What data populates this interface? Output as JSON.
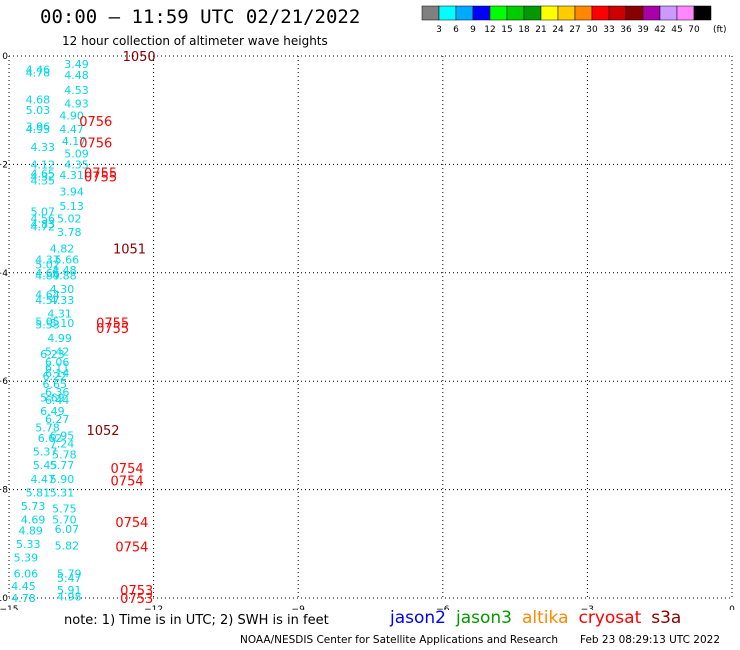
{
  "header": {
    "title": "00:00 – 11:59 UTC 02/21/2022",
    "subtitle": "12 hour collection of altimeter wave heights"
  },
  "colorbar": {
    "unit": "(ft)",
    "labels": [
      "3",
      "6",
      "9",
      "12",
      "15",
      "18",
      "21",
      "24",
      "27",
      "30",
      "33",
      "36",
      "39",
      "42",
      "45",
      "70"
    ],
    "colors": [
      "#808080",
      "#00ffff",
      "#00aaff",
      "#0000ff",
      "#00ff00",
      "#00cc00",
      "#009900",
      "#ffff00",
      "#ffcc00",
      "#ff8800",
      "#ff0000",
      "#cc0000",
      "#880000",
      "#aa00aa",
      "#cc99ff",
      "#ff88ff",
      "#000000"
    ]
  },
  "note": "note:  1) Time is in UTC;  2) SWH is in feet",
  "legend": [
    {
      "label": "jason2",
      "color": "#0000ff"
    },
    {
      "label": "jason3",
      "color": "#009900"
    },
    {
      "label": "altika",
      "color": "#ff8800"
    },
    {
      "label": "cryosat",
      "color": "#ff0000"
    },
    {
      "label": "s3a",
      "color": "#880000"
    }
  ],
  "footer": {
    "left": "NOAA/NESDIS Center for Satellite Applications and Research",
    "right": "Feb 23 08:29:13 UTC 2022"
  },
  "chart_data": {
    "type": "scatter",
    "xlim": [
      -15,
      0
    ],
    "ylim": [
      -10,
      0
    ],
    "xticks": [
      -15,
      -12,
      -9,
      -6,
      -3,
      0
    ],
    "yticks": [
      0,
      -2,
      -4,
      -6,
      -8,
      -10
    ],
    "grid": true,
    "wave_height_labels": [
      {
        "x": -13.6,
        "y": -0.15,
        "v": "3.49"
      },
      {
        "x": -14.4,
        "y": -0.25,
        "v": "4.46"
      },
      {
        "x": -14.4,
        "y": -0.3,
        "v": "4.78"
      },
      {
        "x": -13.6,
        "y": -0.35,
        "v": "4.48"
      },
      {
        "x": -13.6,
        "y": -0.63,
        "v": "4.53"
      },
      {
        "x": -14.4,
        "y": -0.8,
        "v": "4.68"
      },
      {
        "x": -13.6,
        "y": -0.88,
        "v": "4.93"
      },
      {
        "x": -14.4,
        "y": -1.0,
        "v": "5.03"
      },
      {
        "x": -13.7,
        "y": -1.1,
        "v": "4.90"
      },
      {
        "x": -14.4,
        "y": -1.3,
        "v": "3.96"
      },
      {
        "x": -14.4,
        "y": -1.35,
        "v": "4.93"
      },
      {
        "x": -13.7,
        "y": -1.35,
        "v": "4.47"
      },
      {
        "x": -13.65,
        "y": -1.57,
        "v": "4.17"
      },
      {
        "x": -14.3,
        "y": -1.68,
        "v": "4.33"
      },
      {
        "x": -13.6,
        "y": -1.8,
        "v": "5.09"
      },
      {
        "x": -13.6,
        "y": -2.0,
        "v": "4.35"
      },
      {
        "x": -14.3,
        "y": -2.0,
        "v": "4.12"
      },
      {
        "x": -14.3,
        "y": -2.17,
        "v": "4.65"
      },
      {
        "x": -14.3,
        "y": -2.22,
        "v": "4.32"
      },
      {
        "x": -14.3,
        "y": -2.3,
        "v": "4.35"
      },
      {
        "x": -13.7,
        "y": -2.2,
        "v": "4.31"
      },
      {
        "x": -13.7,
        "y": -2.5,
        "v": "3.94"
      },
      {
        "x": -13.7,
        "y": -2.77,
        "v": "5.13"
      },
      {
        "x": -14.3,
        "y": -2.87,
        "v": "5.07"
      },
      {
        "x": -14.3,
        "y": -3.0,
        "v": "4.56"
      },
      {
        "x": -13.75,
        "y": -3.0,
        "v": "5.02"
      },
      {
        "x": -14.3,
        "y": -3.1,
        "v": "4.83"
      },
      {
        "x": -14.3,
        "y": -3.15,
        "v": "4.72"
      },
      {
        "x": -13.75,
        "y": -3.25,
        "v": "3.78"
      },
      {
        "x": -13.9,
        "y": -3.55,
        "v": "4.82"
      },
      {
        "x": -14.2,
        "y": -3.75,
        "v": "4.37"
      },
      {
        "x": -13.8,
        "y": -3.75,
        "v": "5.66"
      },
      {
        "x": -14.2,
        "y": -3.85,
        "v": "5.02"
      },
      {
        "x": -13.85,
        "y": -3.95,
        "v": "4.48"
      },
      {
        "x": -14.2,
        "y": -4.0,
        "v": "4.66"
      },
      {
        "x": -14.2,
        "y": -4.05,
        "v": "4.89"
      },
      {
        "x": -13.85,
        "y": -4.05,
        "v": "4.88"
      },
      {
        "x": -13.9,
        "y": -4.3,
        "v": "4.30"
      },
      {
        "x": -14.2,
        "y": -4.4,
        "v": "4.64"
      },
      {
        "x": -14.2,
        "y": -4.5,
        "v": "4.57"
      },
      {
        "x": -13.9,
        "y": -4.5,
        "v": "4.33"
      },
      {
        "x": -13.95,
        "y": -4.75,
        "v": "4.31"
      },
      {
        "x": -14.2,
        "y": -4.9,
        "v": "5.05"
      },
      {
        "x": -14.2,
        "y": -4.95,
        "v": "5.53"
      },
      {
        "x": -13.9,
        "y": -4.93,
        "v": "5.10"
      },
      {
        "x": -13.95,
        "y": -5.2,
        "v": "4.99"
      },
      {
        "x": -14.0,
        "y": -5.45,
        "v": "5.42"
      },
      {
        "x": -14.1,
        "y": -5.5,
        "v": "6.23"
      },
      {
        "x": -14.0,
        "y": -5.65,
        "v": "6.06"
      },
      {
        "x": -14.0,
        "y": -5.75,
        "v": "6.11"
      },
      {
        "x": -14.0,
        "y": -5.85,
        "v": "6.14"
      },
      {
        "x": -14.05,
        "y": -5.9,
        "v": "6.22"
      },
      {
        "x": -14.05,
        "y": -6.05,
        "v": "6.65"
      },
      {
        "x": -14.0,
        "y": -6.2,
        "v": "6.36"
      },
      {
        "x": -14.1,
        "y": -6.3,
        "v": "5.69"
      },
      {
        "x": -14.0,
        "y": -6.35,
        "v": "6.44"
      },
      {
        "x": -14.1,
        "y": -6.55,
        "v": "6.49"
      },
      {
        "x": -14.0,
        "y": -6.7,
        "v": "6.27"
      },
      {
        "x": -14.2,
        "y": -6.85,
        "v": "5.78"
      },
      {
        "x": -13.9,
        "y": -7.0,
        "v": "6.95"
      },
      {
        "x": -14.15,
        "y": -7.05,
        "v": "6.62"
      },
      {
        "x": -13.9,
        "y": -7.15,
        "v": "7.24"
      },
      {
        "x": -14.25,
        "y": -7.3,
        "v": "5.37"
      },
      {
        "x": -13.85,
        "y": -7.35,
        "v": "5.78"
      },
      {
        "x": -14.25,
        "y": -7.55,
        "v": "5.45"
      },
      {
        "x": -13.9,
        "y": -7.55,
        "v": "5.77"
      },
      {
        "x": -14.3,
        "y": -7.8,
        "v": "4.47"
      },
      {
        "x": -13.9,
        "y": -7.8,
        "v": "5.90"
      },
      {
        "x": -14.4,
        "y": -8.05,
        "v": "5.81"
      },
      {
        "x": -13.9,
        "y": -8.05,
        "v": "5.31"
      },
      {
        "x": -14.5,
        "y": -8.3,
        "v": "5.73"
      },
      {
        "x": -13.85,
        "y": -8.35,
        "v": "5.75"
      },
      {
        "x": -14.5,
        "y": -8.55,
        "v": "4.69"
      },
      {
        "x": -13.85,
        "y": -8.55,
        "v": "5.70"
      },
      {
        "x": -14.55,
        "y": -8.75,
        "v": "4.89"
      },
      {
        "x": -13.8,
        "y": -8.73,
        "v": "6.07"
      },
      {
        "x": -14.6,
        "y": -9.0,
        "v": "5.33"
      },
      {
        "x": -13.8,
        "y": -9.03,
        "v": "5.82"
      },
      {
        "x": -14.65,
        "y": -9.25,
        "v": "5.39"
      },
      {
        "x": -14.65,
        "y": -9.55,
        "v": "6.06"
      },
      {
        "x": -13.75,
        "y": -9.55,
        "v": "5.79"
      },
      {
        "x": -13.75,
        "y": -9.63,
        "v": "5.47"
      },
      {
        "x": -14.7,
        "y": -9.78,
        "v": "4.45"
      },
      {
        "x": -13.75,
        "y": -9.85,
        "v": "5.91"
      },
      {
        "x": -14.7,
        "y": -10.0,
        "v": "4.78"
      },
      {
        "x": -13.75,
        "y": -9.97,
        "v": "4.98"
      }
    ],
    "time_labels": [
      {
        "x": -12.3,
        "y": 0.0,
        "v": "1050",
        "color": "#880000"
      },
      {
        "x": -13.2,
        "y": -1.2,
        "v": "0756",
        "color": "#ff0000"
      },
      {
        "x": -13.2,
        "y": -1.6,
        "v": "0756",
        "color": "#ff0000"
      },
      {
        "x": -13.1,
        "y": -2.15,
        "v": "0755",
        "color": "#ff0000"
      },
      {
        "x": -13.1,
        "y": -2.22,
        "v": "0755",
        "color": "#ff0000"
      },
      {
        "x": -12.5,
        "y": -3.55,
        "v": "1051",
        "color": "#880000"
      },
      {
        "x": -12.85,
        "y": -4.92,
        "v": "0755",
        "color": "#ff0000"
      },
      {
        "x": -12.85,
        "y": -5.02,
        "v": "0755",
        "color": "#ff0000"
      },
      {
        "x": -13.05,
        "y": -6.9,
        "v": "1052",
        "color": "#880000"
      },
      {
        "x": -12.55,
        "y": -7.6,
        "v": "0754",
        "color": "#ff0000"
      },
      {
        "x": -12.55,
        "y": -7.83,
        "v": "0754",
        "color": "#ff0000"
      },
      {
        "x": -12.45,
        "y": -8.6,
        "v": "0754",
        "color": "#ff0000"
      },
      {
        "x": -12.45,
        "y": -9.05,
        "v": "0754",
        "color": "#ff0000"
      },
      {
        "x": -12.35,
        "y": -9.85,
        "v": "0753",
        "color": "#ff0000"
      },
      {
        "x": -12.35,
        "y": -10.0,
        "v": "0753",
        "color": "#ff0000"
      }
    ]
  }
}
